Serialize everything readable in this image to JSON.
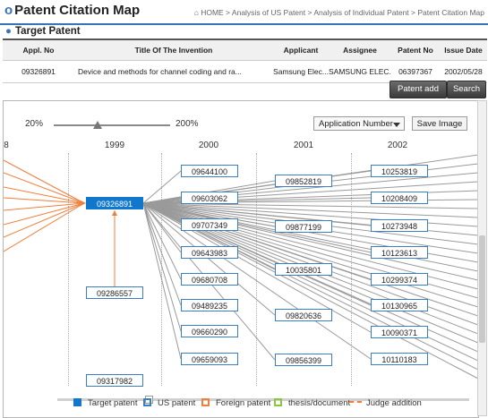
{
  "header": {
    "title": "Patent Citation Map",
    "breadcrumb": "⌂ HOME > Analysis of US Patent > Analysis of Individual Patent > Patent Citation Map"
  },
  "target_section": {
    "title": "Target Patent",
    "columns": [
      "Appl. No",
      "Title Of The Invention",
      "Applicant",
      "Assignee",
      "Patent No",
      "Issue Date"
    ],
    "row": [
      "09326891",
      "Device and methods for channel coding and ra...",
      "Samsung Elec...",
      "SAMSUNG ELEC...",
      "06397367",
      "2002/05/28"
    ]
  },
  "buttons": {
    "patent_add": "Patent add",
    "search": "Search"
  },
  "map": {
    "zoom_min": "20%",
    "zoom_max": "200%",
    "zoom_level": 0.38,
    "sort_select": "Application Number",
    "save_image": "Save Image",
    "years": [
      "8",
      "1999",
      "2000",
      "2001",
      "2002"
    ],
    "target": "09326891",
    "col_1999": [
      "09286557",
      "09317982"
    ],
    "col_2000": [
      "09644100",
      "09603062",
      "09707349",
      "09643983",
      "09680708",
      "09489235",
      "09660290",
      "09659093"
    ],
    "col_2001": [
      "09852819",
      "09877199",
      "10035801",
      "09820636",
      "09856399"
    ],
    "col_2002": [
      "10253819",
      "10208409",
      "10273948",
      "10123613",
      "10299374",
      "10130965",
      "10090371",
      "10110183"
    ]
  },
  "legend": {
    "target": "Target patent",
    "us": "US patent",
    "foreign": "Foreign patent",
    "thesis": "thesis/document",
    "judge": "Judge addition"
  },
  "colors": {
    "accent": "#3b73b9",
    "target": "#1177cc",
    "foreign": "#f07f3c",
    "thesis": "#8cc63f"
  }
}
